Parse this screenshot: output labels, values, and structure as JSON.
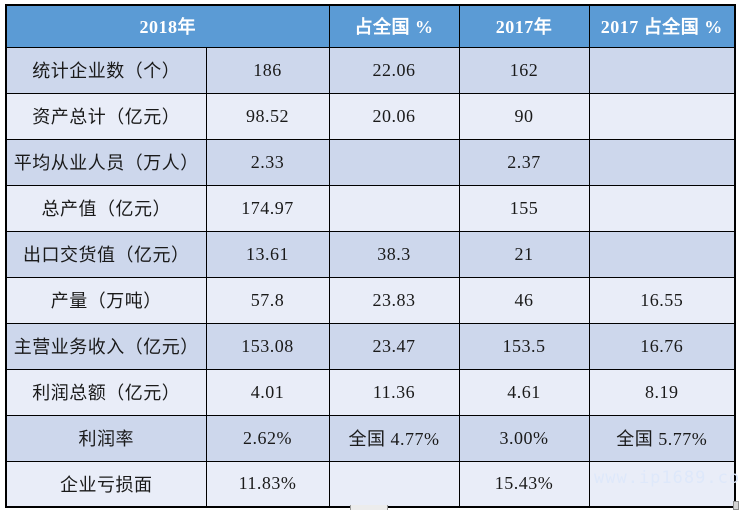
{
  "colors": {
    "header_bg": "#5B9BD5",
    "header_text": "#FFFFFF",
    "row_odd_bg": "#CDD7EC",
    "row_even_bg": "#E9EDF8",
    "border": "#000000",
    "body_text": "#1A1A1A",
    "watermark_text": "#DEE8FA"
  },
  "header": {
    "col_2018": "2018年",
    "col_share_2018": "占全国 %",
    "col_2017": "2017年",
    "col_share_2017": "2017 占全国 %"
  },
  "table": {
    "rows": [
      {
        "label": "统计企业数（个）",
        "v2018": "186",
        "share2018": "22.06",
        "v2017": "162",
        "share2017": ""
      },
      {
        "label": "资产总计（亿元）",
        "v2018": "98.52",
        "share2018": "20.06",
        "v2017": "90",
        "share2017": ""
      },
      {
        "label": "平均从业人员（万人）",
        "v2018": "2.33",
        "share2018": "",
        "v2017": "2.37",
        "share2017": ""
      },
      {
        "label": "总产值（亿元）",
        "v2018": "174.97",
        "share2018": "",
        "v2017": "155",
        "share2017": ""
      },
      {
        "label": "出口交货值（亿元）",
        "v2018": "13.61",
        "share2018": "38.3",
        "v2017": "21",
        "share2017": ""
      },
      {
        "label": "产量（万吨）",
        "v2018": "57.8",
        "share2018": "23.83",
        "v2017": "46",
        "share2017": "16.55"
      },
      {
        "label": "主营业务收入（亿元）",
        "v2018": "153.08",
        "share2018": "23.47",
        "v2017": "153.5",
        "share2017": "16.76"
      },
      {
        "label": "利润总额（亿元）",
        "v2018": "4.01",
        "share2018": "11.36",
        "v2017": "4.61",
        "share2017": "8.19"
      },
      {
        "label": "利润率",
        "v2018": "2.62%",
        "share2018": "全国 4.77%",
        "v2017": "3.00%",
        "share2017": "全国 5.77%"
      },
      {
        "label": "企业亏损面",
        "v2018": "11.83%",
        "share2018": "",
        "v2017": "15.43%",
        "share2017": ""
      }
    ]
  },
  "watermark": "www.ip1689.com"
}
